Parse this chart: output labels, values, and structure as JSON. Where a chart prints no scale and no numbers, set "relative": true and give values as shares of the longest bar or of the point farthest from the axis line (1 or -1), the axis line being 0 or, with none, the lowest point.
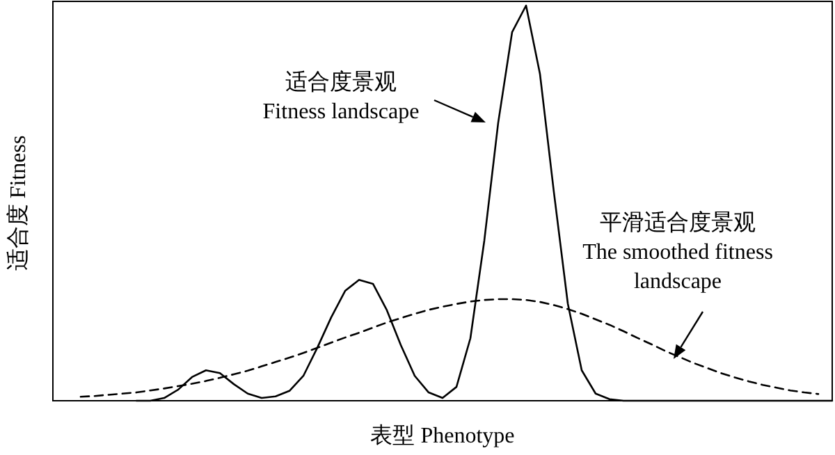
{
  "chart_data": {
    "type": "line",
    "relative": true,
    "xlabel": "表型 Phenotype",
    "ylabel": "适合度 Fitness",
    "categories": [
      null,
      null,
      null,
      null,
      null,
      null,
      null,
      null,
      null,
      null,
      null,
      null,
      null,
      null,
      null,
      null,
      null,
      null,
      null,
      null,
      null,
      null,
      null,
      null,
      null,
      null,
      null,
      null,
      null,
      null,
      null,
      null,
      null,
      null,
      null,
      null,
      null,
      null,
      null,
      null,
      null,
      null,
      null,
      null,
      null,
      null,
      null,
      null,
      null,
      null,
      null,
      null,
      null,
      null,
      null,
      null,
      null
    ],
    "series": [
      {
        "color": "#000000",
        "line_style": "solid",
        "values": [
          null,
          null,
          null,
          null,
          null,
          null,
          0,
          0,
          0.007,
          0.028,
          0.06,
          0.077,
          0.07,
          0.042,
          0.018,
          0.007,
          0.011,
          0.025,
          0.063,
          0.134,
          0.211,
          0.278,
          0.306,
          0.296,
          0.229,
          0.141,
          0.063,
          0.021,
          0.007,
          0.035,
          0.158,
          0.405,
          0.704,
          0.933,
          1,
          0.827,
          0.528,
          0.246,
          0.077,
          0.018,
          0.004,
          0,
          0,
          0,
          0,
          0,
          0,
          0,
          0,
          0,
          0,
          0,
          0,
          0,
          0,
          0,
          0
        ]
      },
      {
        "color": "#000000",
        "line_style": "dashed",
        "values": [
          null,
          null,
          0.01,
          0.012,
          0.015,
          0.018,
          0.021,
          0.026,
          0.031,
          0.037,
          0.043,
          0.05,
          0.058,
          0.067,
          0.076,
          0.087,
          0.098,
          0.109,
          0.121,
          0.134,
          0.147,
          0.16,
          0.172,
          0.185,
          0.198,
          0.209,
          0.22,
          0.23,
          0.238,
          0.245,
          0.251,
          0.255,
          0.257,
          0.257,
          0.255,
          0.25,
          0.242,
          0.232,
          0.22,
          0.206,
          0.192,
          0.176,
          0.159,
          0.143,
          0.126,
          0.111,
          0.096,
          0.083,
          0.07,
          0.059,
          0.049,
          0.04,
          0.033,
          0.026,
          0.021,
          0.017,
          null
        ]
      }
    ],
    "annotations": [
      "适合度景观\nFitness landscape",
      "平滑适合度景观\nThe smoothed fitness\nlandscape"
    ]
  }
}
